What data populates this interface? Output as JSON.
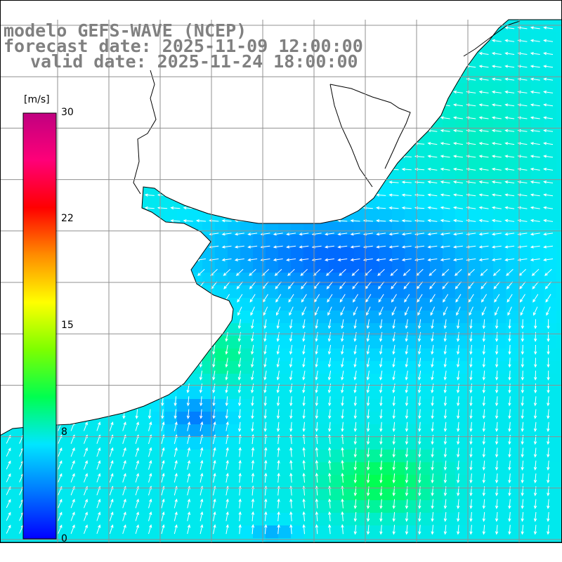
{
  "title": {
    "line1": "modelo GEFS-WAVE (NCEP)",
    "line2": "forecast date: 2025-11-09 12:00:00",
    "line3": "valid date: 2025-11-24 18:00:00"
  },
  "colorbar": {
    "unit": "[m/s]",
    "ticks": [
      {
        "value": 30,
        "label": "30"
      },
      {
        "value": 22,
        "label": "22"
      },
      {
        "value": 15,
        "label": "15"
      },
      {
        "value": 8,
        "label": "8"
      },
      {
        "value": 0,
        "label": "0"
      }
    ],
    "range": [
      0,
      30
    ],
    "colors": [
      "#0000ff",
      "#0078ff",
      "#00e6ff",
      "#00ff50",
      "#7dff00",
      "#ffff00",
      "#ff8c00",
      "#ff0000",
      "#ff0078",
      "#c00080"
    ]
  },
  "map": {
    "variable": "wind speed with direction arrows",
    "land_color": "#ffffff",
    "grid_color": "#909090",
    "arrow_color": "#ffffff",
    "region": "South Atlantic off Uruguay / southern Brazil / Buenos Aires"
  }
}
